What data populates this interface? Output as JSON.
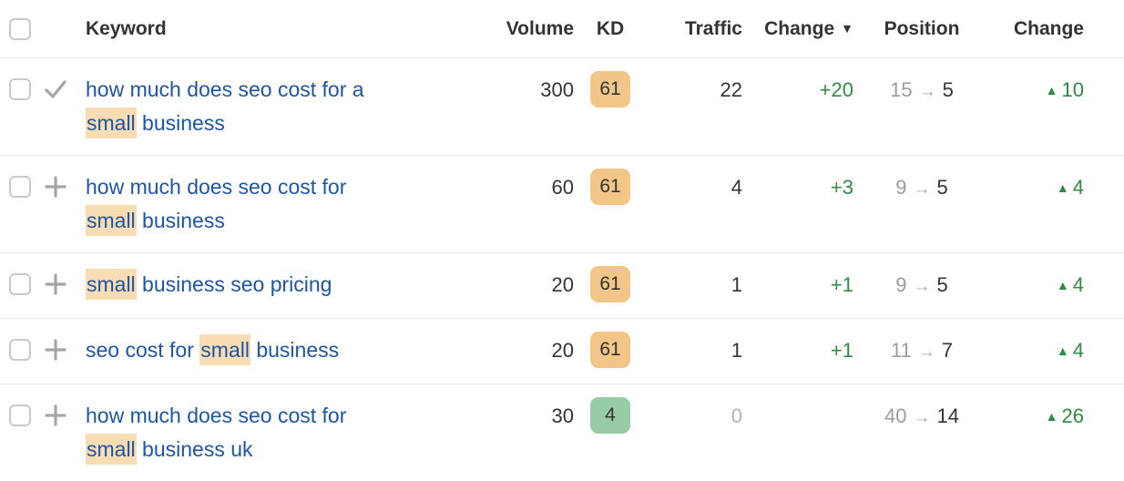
{
  "colors": {
    "link_blue": "#1d56a5",
    "keyword_highlight": "#f8dcb4",
    "kd_orange": "#f2c689",
    "kd_green": "#98cca6",
    "positive_green": "#2f8b45",
    "muted_gray": "#9c9c9c",
    "icon_gray": "#a6a6a6",
    "dark_text": "#333333",
    "row_border": "#e9e9e9",
    "checkbox_border": "#c9c9c9"
  },
  "table": {
    "headers": {
      "keyword": "Keyword",
      "volume": "Volume",
      "kd": "KD",
      "traffic": "Traffic",
      "change": "Change",
      "position": "Position",
      "position_change": "Change"
    },
    "sort": {
      "column": "change",
      "direction": "desc",
      "icon": "▼"
    },
    "rows": [
      {
        "icon": "check",
        "keyword_parts": [
          {
            "text": "how much does seo cost for a ",
            "highlight": false
          },
          {
            "text": "small",
            "highlight": true
          },
          {
            "text": " business",
            "highlight": false
          }
        ],
        "volume": "300",
        "kd": "61",
        "kd_level": "orange",
        "traffic": "22",
        "traffic_muted": false,
        "change": "+20",
        "position": {
          "from": "15",
          "arrow": "→",
          "to": "5"
        },
        "position_change": {
          "icon": "▲",
          "value": "10"
        }
      },
      {
        "icon": "plus",
        "keyword_parts": [
          {
            "text": "how much does seo cost for ",
            "highlight": false
          },
          {
            "text": "small",
            "highlight": true
          },
          {
            "text": " business",
            "highlight": false
          }
        ],
        "volume": "60",
        "kd": "61",
        "kd_level": "orange",
        "traffic": "4",
        "traffic_muted": false,
        "change": "+3",
        "position": {
          "from": "9",
          "arrow": "→",
          "to": "5"
        },
        "position_change": {
          "icon": "▲",
          "value": "4"
        }
      },
      {
        "icon": "plus",
        "keyword_parts": [
          {
            "text": "small",
            "highlight": true
          },
          {
            "text": " business seo pricing",
            "highlight": false
          }
        ],
        "volume": "20",
        "kd": "61",
        "kd_level": "orange",
        "traffic": "1",
        "traffic_muted": false,
        "change": "+1",
        "position": {
          "from": "9",
          "arrow": "→",
          "to": "5"
        },
        "position_change": {
          "icon": "▲",
          "value": "4"
        }
      },
      {
        "icon": "plus",
        "keyword_parts": [
          {
            "text": "seo cost for ",
            "highlight": false
          },
          {
            "text": "small",
            "highlight": true
          },
          {
            "text": " business",
            "highlight": false
          }
        ],
        "volume": "20",
        "kd": "61",
        "kd_level": "orange",
        "traffic": "1",
        "traffic_muted": false,
        "change": "+1",
        "position": {
          "from": "11",
          "arrow": "→",
          "to": "7"
        },
        "position_change": {
          "icon": "▲",
          "value": "4"
        }
      },
      {
        "icon": "plus",
        "keyword_parts": [
          {
            "text": "how much does seo cost for ",
            "highlight": false
          },
          {
            "text": "small",
            "highlight": true
          },
          {
            "text": " business uk",
            "highlight": false
          }
        ],
        "volume": "30",
        "kd": "4",
        "kd_level": "green",
        "traffic": "0",
        "traffic_muted": true,
        "change": "",
        "position": {
          "from": "40",
          "arrow": "→",
          "to": "14"
        },
        "position_change": {
          "icon": "▲",
          "value": "26"
        }
      }
    ]
  }
}
